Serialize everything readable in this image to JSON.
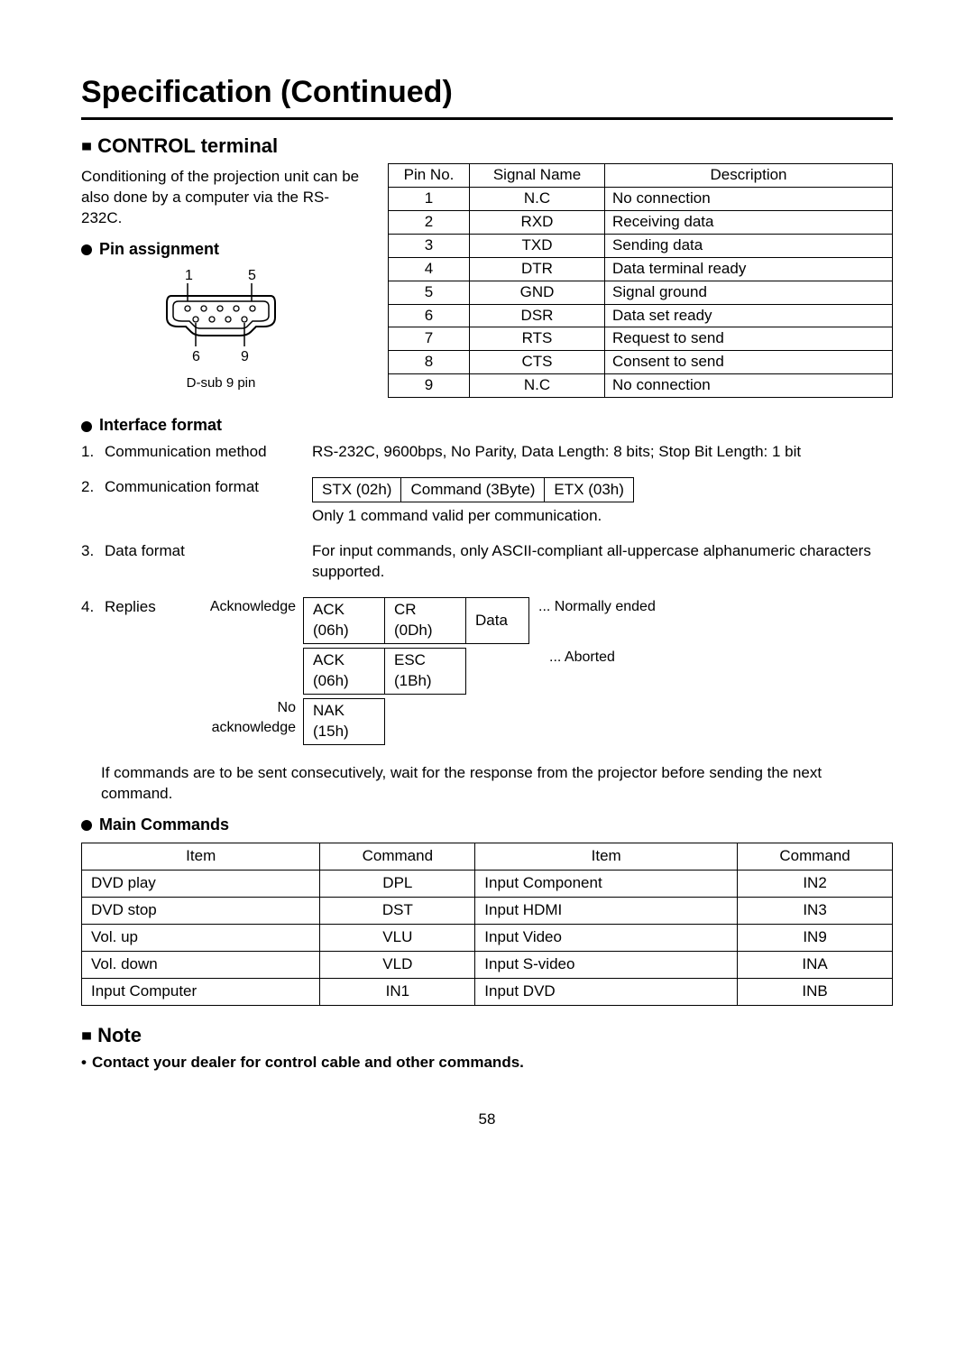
{
  "page": {
    "title": "Specification (Continued)",
    "number": "58"
  },
  "control_terminal": {
    "heading": "CONTROL terminal",
    "intro": "Conditioning of the projection unit can be also done by a computer via the RS-232C.",
    "pin_assignment_heading": "Pin assignment",
    "dsub": {
      "top_left": "1",
      "top_right": "5",
      "bottom_left": "6",
      "bottom_right": "9",
      "caption": "D-sub 9 pin"
    },
    "pin_table": {
      "headers": [
        "Pin No.",
        "Signal Name",
        "Description"
      ],
      "rows": [
        [
          "1",
          "N.C",
          "No connection"
        ],
        [
          "2",
          "RXD",
          "Receiving data"
        ],
        [
          "3",
          "TXD",
          "Sending data"
        ],
        [
          "4",
          "DTR",
          "Data terminal ready"
        ],
        [
          "5",
          "GND",
          "Signal ground"
        ],
        [
          "6",
          "DSR",
          "Data set ready"
        ],
        [
          "7",
          "RTS",
          "Request to send"
        ],
        [
          "8",
          "CTS",
          "Consent to send"
        ],
        [
          "9",
          "N.C",
          "No connection"
        ]
      ],
      "col_widths": [
        "90px",
        "150px",
        "auto"
      ]
    },
    "interface_format_heading": "Interface format",
    "items": {
      "1": {
        "num": "1.",
        "label": "Communication method",
        "value": "RS-232C, 9600bps, No Parity, Data Length: 8 bits; Stop Bit Length: 1 bit"
      },
      "2": {
        "num": "2.",
        "label": "Communication format",
        "cells": [
          "STX (02h)",
          "Command (3Byte)",
          "ETX (03h)"
        ],
        "note": "Only 1 command valid per communication."
      },
      "3": {
        "num": "3.",
        "label": "Data format",
        "value": "For input commands, only ASCII-compliant all-uppercase alphanumeric characters supported."
      },
      "4": {
        "num": "4.",
        "label": "Replies",
        "ack_label": "Acknowledge",
        "noack_label": "No acknowledge",
        "row1": {
          "cells": [
            "ACK (06h)",
            "CR (0Dh)",
            "Data"
          ],
          "note": "... Normally ended"
        },
        "row2": {
          "cells": [
            "ACK (06h)",
            "ESC (1Bh)"
          ],
          "note": "... Aborted"
        },
        "row3": {
          "cells": [
            "NAK (15h)"
          ]
        }
      }
    },
    "after_note": "If commands are to be sent consecutively, wait for the response from the projector before sending the next command.",
    "main_commands_heading": "Main Commands",
    "cmd_table": {
      "headers": [
        "Item",
        "Command",
        "Item",
        "Command"
      ],
      "rows": [
        [
          "DVD play",
          "DPL",
          "Input Component",
          "IN2"
        ],
        [
          "DVD stop",
          "DST",
          "Input HDMI",
          "IN3"
        ],
        [
          "Vol. up",
          "VLU",
          "Input Video",
          "IN9"
        ],
        [
          "Vol. down",
          "VLD",
          "Input S-video",
          "INA"
        ],
        [
          "Input Computer",
          "IN1",
          "Input DVD",
          "INB"
        ]
      ],
      "col_widths": [
        "200px",
        "130px",
        "220px",
        "130px"
      ]
    }
  },
  "note_section": {
    "heading": "Note",
    "body": "Contact your dealer for control cable and other commands."
  },
  "colors": {
    "text": "#000000",
    "background": "#ffffff",
    "border": "#000000"
  }
}
